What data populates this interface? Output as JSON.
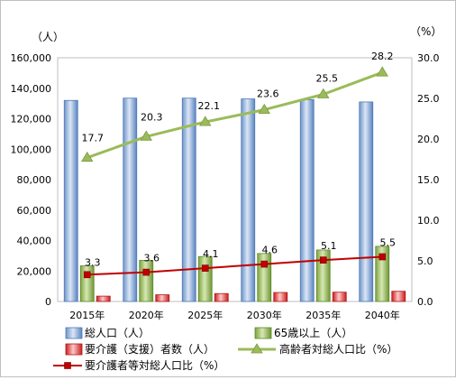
{
  "chart_data": {
    "type": "bar",
    "categories": [
      "2015年",
      "2020年",
      "2025年",
      "2030年",
      "2035年",
      "2040年"
    ],
    "y_left": {
      "unit": "（人）",
      "ylim": [
        0,
        160000
      ],
      "ticks": [
        "0",
        "20,000",
        "40,000",
        "60,000",
        "80,000",
        "100,000",
        "120,000",
        "140,000",
        "160,000"
      ]
    },
    "y_right": {
      "unit": "（%）",
      "ylim": [
        0,
        30
      ],
      "ticks": [
        "0.0",
        "5.0",
        "10.0",
        "15.0",
        "20.0",
        "25.0",
        "30.0"
      ]
    },
    "series": [
      {
        "name": "総人口（人）",
        "type": "bar",
        "axis": "left",
        "color": "#95b3d7",
        "values": [
          132000,
          133500,
          133500,
          133000,
          132500,
          131000
        ]
      },
      {
        "name": "65歳以上（人）",
        "type": "bar",
        "axis": "left",
        "color": "#9bbb59",
        "values": [
          23400,
          27000,
          29500,
          31500,
          33800,
          36200
        ]
      },
      {
        "name": "要介護（支援）者数（人）",
        "type": "bar",
        "axis": "left",
        "color": "#e24b4b",
        "values": [
          3500,
          4400,
          5200,
          5900,
          6100,
          6700
        ]
      },
      {
        "name": "高齢者対総人口比（%）",
        "type": "line",
        "axis": "right",
        "color": "#9bbb59",
        "marker": "triangle",
        "values": [
          17.7,
          20.3,
          22.1,
          23.6,
          25.5,
          28.2
        ],
        "labels": [
          "17.7",
          "20.3",
          "22.1",
          "23.6",
          "25.5",
          "28.2"
        ]
      },
      {
        "name": "要介護者等対総人口比（%）",
        "type": "line",
        "axis": "right",
        "color": "#c00000",
        "marker": "square",
        "values": [
          3.3,
          3.6,
          4.1,
          4.6,
          5.1,
          5.5
        ],
        "labels": [
          "3.3",
          "3.6",
          "4.1",
          "4.6",
          "5.1",
          "5.5"
        ]
      }
    ],
    "grid": false,
    "legend": "bottom"
  }
}
